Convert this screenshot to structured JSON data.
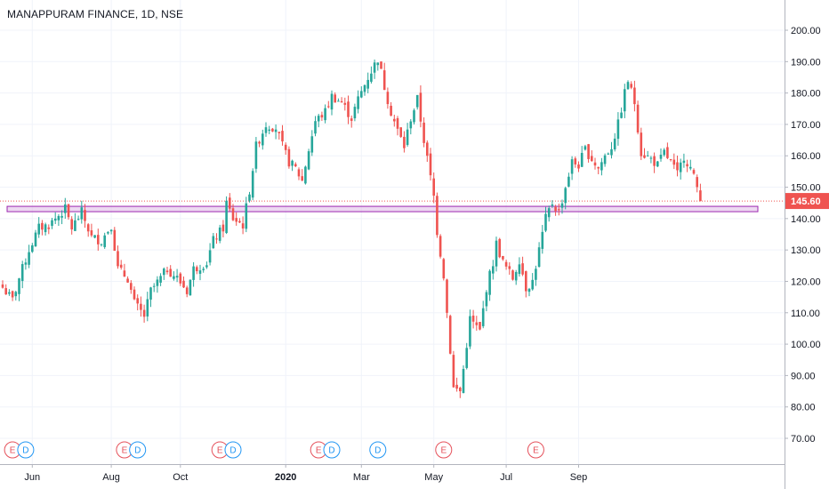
{
  "header": {
    "title": "MANAPPURAM FINANCE, 1D, NSE"
  },
  "colors": {
    "up": "#26a69a",
    "down": "#ef5350",
    "grid": "#f0f3fa",
    "zone_fill": "#e1bee7",
    "zone_stroke": "#9c27b0",
    "last_price_bg": "#ef5350",
    "earnings": "#e5505a",
    "dividend": "#2196f3"
  },
  "chart_data": {
    "type": "candlestick",
    "title": "MANAPPURAM FINANCE, 1D, NSE",
    "y_ticks": [
      "200.00",
      "190.00",
      "180.00",
      "170.00",
      "160.00",
      "150.00",
      "140.00",
      "130.00",
      "120.00",
      "110.00",
      "100.00",
      "90.00",
      "80.00",
      "70.00"
    ],
    "y_range": [
      66,
      205
    ],
    "x_labels": [
      {
        "label": "Jun",
        "bold": false
      },
      {
        "label": "Aug",
        "bold": false
      },
      {
        "label": "Oct",
        "bold": false
      },
      {
        "label": "2020",
        "bold": true
      },
      {
        "label": "Mar",
        "bold": false
      },
      {
        "label": "May",
        "bold": false
      },
      {
        "label": "Jul",
        "bold": false
      },
      {
        "label": "Sep",
        "bold": false
      }
    ],
    "last_price": "145.60",
    "last_price_value": 145.6,
    "support_zone": [
      142.2,
      143.9
    ],
    "price_path": [
      [
        0,
        118
      ],
      [
        3,
        114
      ],
      [
        5,
        121
      ],
      [
        8,
        130
      ],
      [
        11,
        137
      ],
      [
        14,
        138
      ],
      [
        17,
        141
      ],
      [
        19,
        143
      ],
      [
        21,
        137
      ],
      [
        24,
        142
      ],
      [
        27,
        134
      ],
      [
        30,
        133
      ],
      [
        33,
        138
      ],
      [
        35,
        124
      ],
      [
        38,
        121
      ],
      [
        40,
        113
      ],
      [
        43,
        109
      ],
      [
        45,
        117
      ],
      [
        48,
        121
      ],
      [
        50,
        124
      ],
      [
        53,
        121
      ],
      [
        56,
        117
      ],
      [
        58,
        124
      ],
      [
        62,
        126
      ],
      [
        64,
        133
      ],
      [
        67,
        137
      ],
      [
        68,
        145
      ],
      [
        70,
        140
      ],
      [
        73,
        138
      ],
      [
        75,
        149
      ],
      [
        77,
        163
      ],
      [
        80,
        170
      ],
      [
        83,
        169
      ],
      [
        85,
        163
      ],
      [
        87,
        158
      ],
      [
        89,
        156
      ],
      [
        91,
        152
      ],
      [
        93,
        162
      ],
      [
        95,
        171
      ],
      [
        98,
        174
      ],
      [
        100,
        179
      ],
      [
        103,
        177
      ],
      [
        106,
        172
      ],
      [
        108,
        178
      ],
      [
        111,
        185
      ],
      [
        113,
        189
      ],
      [
        114,
        191
      ],
      [
        116,
        182
      ],
      [
        118,
        174
      ],
      [
        120,
        168
      ],
      [
        122,
        163
      ],
      [
        124,
        172
      ],
      [
        126,
        178
      ],
      [
        128,
        165
      ],
      [
        129,
        159
      ],
      [
        131,
        147
      ],
      [
        132,
        136
      ],
      [
        134,
        122
      ],
      [
        136,
        98
      ],
      [
        137,
        86
      ],
      [
        139,
        85
      ],
      [
        140,
        92
      ],
      [
        142,
        108
      ],
      [
        145,
        104
      ],
      [
        147,
        118
      ],
      [
        149,
        126
      ],
      [
        150,
        132
      ],
      [
        152,
        126
      ],
      [
        155,
        121
      ],
      [
        157,
        127
      ],
      [
        159,
        118
      ],
      [
        161,
        120
      ],
      [
        163,
        130
      ],
      [
        165,
        140
      ],
      [
        167,
        145
      ],
      [
        169,
        142
      ],
      [
        171,
        150
      ],
      [
        173,
        158
      ],
      [
        175,
        157
      ],
      [
        177,
        162
      ],
      [
        179,
        159
      ],
      [
        181,
        156
      ],
      [
        183,
        160
      ],
      [
        185,
        163
      ],
      [
        187,
        170
      ],
      [
        189,
        180
      ],
      [
        190,
        184
      ],
      [
        192,
        177
      ],
      [
        194,
        161
      ],
      [
        197,
        159
      ],
      [
        199,
        157
      ],
      [
        201,
        161
      ],
      [
        203,
        158
      ],
      [
        205,
        154
      ],
      [
        207,
        160
      ],
      [
        209,
        156
      ],
      [
        211,
        150
      ],
      [
        212,
        145.6
      ]
    ],
    "total_days": 213,
    "events": [
      {
        "type": "E",
        "day": 3
      },
      {
        "type": "D",
        "day": 7
      },
      {
        "type": "E",
        "day": 37
      },
      {
        "type": "D",
        "day": 41
      },
      {
        "type": "E",
        "day": 66
      },
      {
        "type": "D",
        "day": 70
      },
      {
        "type": "E",
        "day": 96
      },
      {
        "type": "D",
        "day": 100
      },
      {
        "type": "D",
        "day": 114
      },
      {
        "type": "E",
        "day": 134
      },
      {
        "type": "E",
        "day": 162
      }
    ],
    "x_label_days": [
      9,
      33,
      54,
      86,
      109,
      131,
      153,
      175
    ]
  }
}
